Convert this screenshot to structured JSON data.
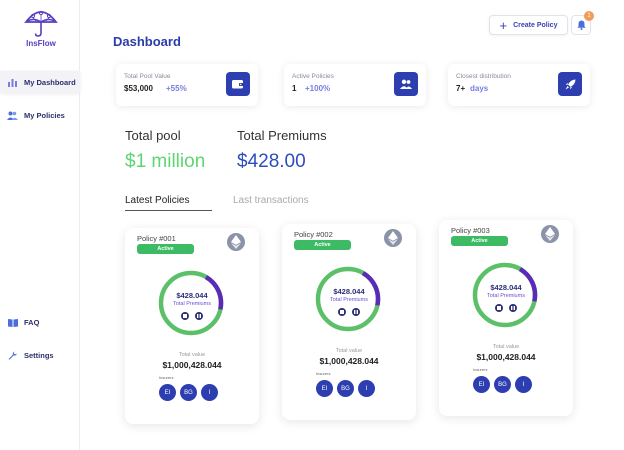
{
  "app": {
    "name": "InsFlow"
  },
  "sidebar": {
    "items": [
      {
        "label": "My Dashboard",
        "icon": "bar-chart-icon"
      },
      {
        "label": "My Policies",
        "icon": "users-icon"
      },
      {
        "label": "FAQ",
        "icon": "book-icon"
      },
      {
        "label": "Settings",
        "icon": "wrench-icon"
      }
    ]
  },
  "header": {
    "create_label": "Create Policy",
    "notification_count": "1"
  },
  "page": {
    "title": "Dashboard"
  },
  "stats": [
    {
      "label": "Total Pool Value",
      "value": "$53,000",
      "delta": "+55%",
      "icon": "wallet-icon"
    },
    {
      "label": "Active Policies",
      "value": "1",
      "delta": "+100%",
      "icon": "users-icon"
    },
    {
      "label": "Closest distribution",
      "value": "7+",
      "delta": "days",
      "icon": "rocket-icon"
    }
  ],
  "summary": {
    "pool_label": "Total pool",
    "pool_value": "$1 million",
    "premiums_label": "Total Premiums",
    "premiums_value": "$428.00"
  },
  "tabs": [
    {
      "label": "Latest Policies",
      "active": true
    },
    {
      "label": "Last transactions",
      "active": false
    }
  ],
  "policies": [
    {
      "title": "Policy #001",
      "status": "Active",
      "amount": "$428.044",
      "amount_label": "Total Premiums",
      "total_label": "Total value",
      "total_value": "$1,000,428.044",
      "insurers_label": "Insurers",
      "insurers": [
        "EI",
        "BG",
        "I"
      ],
      "premium_fraction": 0.2
    },
    {
      "title": "Policy #002",
      "status": "Active",
      "amount": "$428.044",
      "amount_label": "Total Premiums",
      "total_label": "Total value",
      "total_value": "$1,000,428.044",
      "insurers_label": "Insurers",
      "insurers": [
        "EI",
        "BG",
        "I"
      ],
      "premium_fraction": 0.2
    },
    {
      "title": "Policy #003",
      "status": "Active",
      "amount": "$428.044",
      "amount_label": "Total Premiums",
      "total_label": "Total value",
      "total_value": "$1,000,428.044",
      "insurers_label": "Insurers",
      "insurers": [
        "EI",
        "BG",
        "I"
      ],
      "premium_fraction": 0.2
    }
  ],
  "colors": {
    "brand": "#5a3fc0",
    "primary": "#2d3eb0",
    "active_green": "#3dbb64",
    "donut_green": "#5cc068",
    "donut_purple": "#5a2bb8",
    "badge_orange": "#f29a5a"
  }
}
